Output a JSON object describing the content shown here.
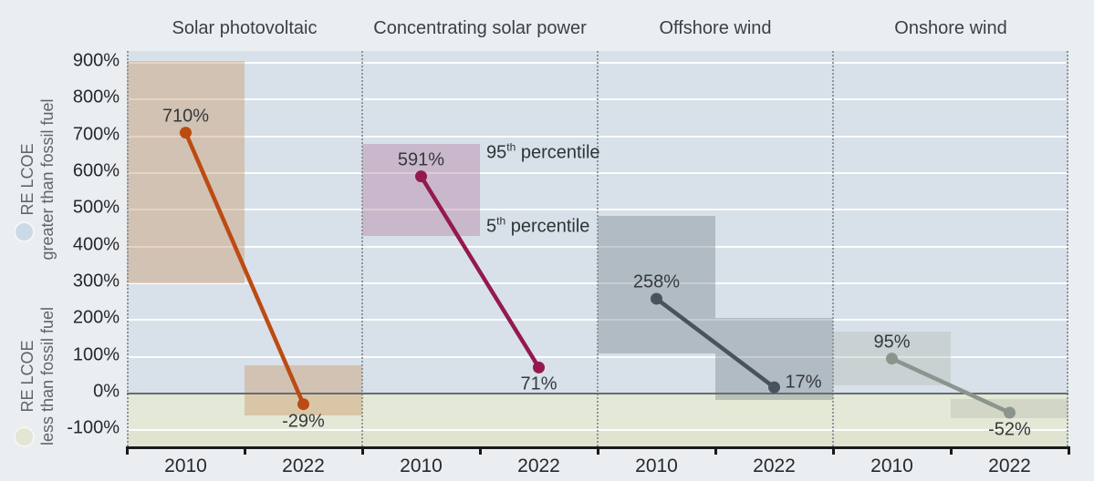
{
  "chart_data": {
    "type": "line",
    "subtype": "slope-chart-with-percentile-range-bands",
    "unit": "percent",
    "x_categories": [
      "2010",
      "2022"
    ],
    "ylim": [
      -144,
      932
    ],
    "grid": true,
    "y_axis": {
      "tick_values": [
        900,
        800,
        700,
        600,
        500,
        400,
        300,
        200,
        100,
        0,
        -100
      ],
      "tick_labels": [
        "900%",
        "800%",
        "700%",
        "600%",
        "500%",
        "400%",
        "300%",
        "200%",
        "100%",
        "0%",
        "-100%"
      ]
    },
    "panels": [
      {
        "title": "Solar photovoltaic",
        "line_color": "#bc4b12",
        "band_color": "rgba(196,138,84,0.36)",
        "points": [
          {
            "x": "2010",
            "value": 710,
            "label": "710%",
            "label_pos": "above",
            "band": [
              300,
              905
            ]
          },
          {
            "x": "2022",
            "value": -29,
            "label": "-29%",
            "label_pos": "below",
            "band": [
              -60,
              77
            ]
          }
        ]
      },
      {
        "title": "Concentrating solar power",
        "line_color": "#94194f",
        "band_color": "rgba(170,100,140,0.33)",
        "points": [
          {
            "x": "2010",
            "value": 591,
            "label": "591%",
            "label_pos": "above",
            "band": [
              430,
              680
            ]
          },
          {
            "x": "2022",
            "value": 71,
            "label": "71%",
            "label_pos": "below",
            "band": null
          }
        ]
      },
      {
        "title": "Offshore wind",
        "line_color": "#47545d",
        "band_color": "rgba(113,125,133,0.38)",
        "points": [
          {
            "x": "2010",
            "value": 258,
            "label": "258%",
            "label_pos": "above",
            "band": [
              110,
              483
            ]
          },
          {
            "x": "2022",
            "value": 17,
            "label": "17%",
            "label_pos": "right",
            "band": [
              -18,
              206
            ]
          }
        ]
      },
      {
        "title": "Onshore wind",
        "line_color": "#8b958e",
        "band_color": "rgba(165,172,160,0.30)",
        "points": [
          {
            "x": "2010",
            "value": 95,
            "label": "95%",
            "label_pos": "above",
            "band": [
              22,
              168
            ]
          },
          {
            "x": "2022",
            "value": -52,
            "label": "-52%",
            "label_pos": "below",
            "band": [
              -68,
              -16
            ]
          }
        ]
      }
    ],
    "band_annotations": {
      "top": {
        "value": "95",
        "ordinal": "th",
        "text": "percentile"
      },
      "bottom": {
        "value": "5",
        "ordinal": "th",
        "text": "percentile"
      }
    },
    "region_labels": [
      {
        "line1": "RE LCOE",
        "line2": "greater than fossil fuel",
        "swatch_color": "#cbdae7"
      },
      {
        "line1": "RE LCOE",
        "line2": "less than fossil fuel",
        "swatch_color": "#e2e6d3"
      }
    ],
    "colors": {
      "background": "#ebeef0",
      "region_above_zero": "#d8e1ea",
      "region_below_zero": "#e4e8d6",
      "region_below_minus100": "#dfe3d0",
      "zero_line": "#676d71",
      "axis": "#17191a"
    }
  }
}
